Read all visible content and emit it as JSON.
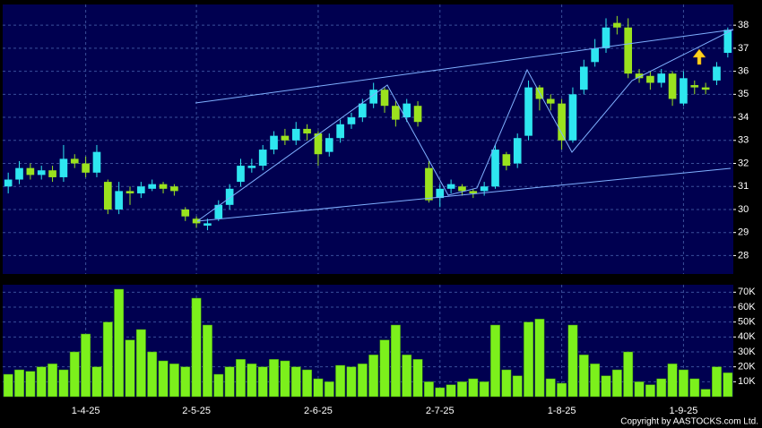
{
  "chart_data": [
    {
      "type": "candlestick",
      "up_color": "#2ee6f0",
      "down_color": "#9be21e",
      "open": [
        31.0,
        31.3,
        31.8,
        31.5,
        31.7,
        31.4,
        32.2,
        32.0,
        31.6,
        31.2,
        30.0,
        30.8,
        30.7,
        30.9,
        31.1,
        31.0,
        30.0,
        29.6,
        29.3,
        29.6,
        30.2,
        31.2,
        31.8,
        31.9,
        32.6,
        33.2,
        33.0,
        33.5,
        33.3,
        32.5,
        33.1,
        33.7,
        34.0,
        34.6,
        35.2,
        34.5,
        34.0,
        34.5,
        31.8,
        30.5,
        30.9,
        31.0,
        30.8,
        30.8,
        31.0,
        32.4,
        32.0,
        33.2,
        35.3,
        34.8,
        34.6,
        33.0,
        35.2,
        36.4,
        37.0,
        38.1,
        37.9,
        35.9,
        35.8,
        35.5,
        35.9,
        34.6,
        35.4,
        35.3,
        35.6,
        36.8
      ],
      "high": [
        31.6,
        32.1,
        32.0,
        31.9,
        31.9,
        32.8,
        32.4,
        32.3,
        32.8,
        31.3,
        31.2,
        31.0,
        31.2,
        31.3,
        31.2,
        31.1,
        30.1,
        29.7,
        29.6,
        30.4,
        31.1,
        32.2,
        32.2,
        32.8,
        33.4,
        33.5,
        33.8,
        33.7,
        33.4,
        33.3,
        33.9,
        34.2,
        34.8,
        35.5,
        35.3,
        34.7,
        34.8,
        34.7,
        32.1,
        31.1,
        31.3,
        31.1,
        30.9,
        31.2,
        32.8,
        32.5,
        33.3,
        35.6,
        35.4,
        35.0,
        34.8,
        35.3,
        36.5,
        37.4,
        38.3,
        38.4,
        38.3,
        36.1,
        36.0,
        36.1,
        36.0,
        36.0,
        35.6,
        35.5,
        36.4,
        37.9
      ],
      "low": [
        30.7,
        31.1,
        31.3,
        31.3,
        31.2,
        31.2,
        31.8,
        31.4,
        31.4,
        29.8,
        29.8,
        30.2,
        30.5,
        30.8,
        30.7,
        30.6,
        29.5,
        29.2,
        29.1,
        29.5,
        30.0,
        31.0,
        31.6,
        31.7,
        32.4,
        32.8,
        32.8,
        33.0,
        31.9,
        32.3,
        32.9,
        33.5,
        33.8,
        34.4,
        34.2,
        33.6,
        33.8,
        33.6,
        30.3,
        30.1,
        30.7,
        30.6,
        30.5,
        30.6,
        30.9,
        31.7,
        31.8,
        33.0,
        34.3,
        34.3,
        32.6,
        32.9,
        35.0,
        36.2,
        36.8,
        37.6,
        35.7,
        35.5,
        35.2,
        35.3,
        34.5,
        34.5,
        35.0,
        35.0,
        35.4,
        36.6
      ],
      "close": [
        31.3,
        31.8,
        31.5,
        31.7,
        31.4,
        32.2,
        32.0,
        31.6,
        32.5,
        30.0,
        30.8,
        30.7,
        31.0,
        31.1,
        30.9,
        30.8,
        29.7,
        29.4,
        29.4,
        30.2,
        30.9,
        31.9,
        31.9,
        32.6,
        33.2,
        33.0,
        33.5,
        33.3,
        32.4,
        33.1,
        33.7,
        34.0,
        34.6,
        35.2,
        34.5,
        33.9,
        34.6,
        33.8,
        30.4,
        30.9,
        31.1,
        30.8,
        30.7,
        31.0,
        32.6,
        31.9,
        33.1,
        35.3,
        34.8,
        34.6,
        33.0,
        35.0,
        36.2,
        37.0,
        37.9,
        37.9,
        35.9,
        35.7,
        35.5,
        35.9,
        34.8,
        35.7,
        35.3,
        35.2,
        36.2,
        37.8
      ],
      "ylim": [
        27.2,
        38.9
      ],
      "yticks": [
        28,
        29,
        30,
        31,
        32,
        33,
        34,
        35,
        36,
        37,
        38
      ],
      "grid": true
    },
    {
      "type": "bar",
      "color": "#7cf01c",
      "categories": [
        null,
        null,
        null,
        null,
        null,
        null,
        null,
        "1-4-25",
        null,
        null,
        null,
        null,
        null,
        null,
        null,
        null,
        null,
        "2-5-25",
        null,
        null,
        null,
        null,
        null,
        null,
        null,
        null,
        null,
        null,
        "2-6-25",
        null,
        null,
        null,
        null,
        null,
        null,
        null,
        null,
        null,
        null,
        "2-7-25",
        null,
        null,
        null,
        null,
        null,
        null,
        null,
        null,
        null,
        null,
        "1-8-25",
        null,
        null,
        null,
        null,
        null,
        null,
        null,
        null,
        null,
        null,
        "1-9-25",
        null,
        null,
        null,
        null
      ],
      "values": [
        15000,
        18000,
        17000,
        20000,
        22000,
        18000,
        30000,
        42000,
        20000,
        50000,
        72000,
        38000,
        45000,
        30000,
        24000,
        22000,
        20000,
        66000,
        48000,
        15000,
        20000,
        25000,
        22000,
        20000,
        25000,
        24000,
        20000,
        18000,
        12000,
        10000,
        21000,
        20000,
        22000,
        28000,
        38000,
        48000,
        28000,
        25000,
        10000,
        6000,
        8000,
        10000,
        12000,
        10000,
        48000,
        18000,
        14000,
        50000,
        52000,
        12000,
        9000,
        48000,
        28000,
        22000,
        14000,
        18000,
        30000,
        10000,
        8000,
        12000,
        22000,
        18000,
        12000,
        5000,
        20000,
        16000
      ],
      "ylim": [
        0,
        75000
      ],
      "yticks": [
        {
          "value": 10000,
          "label": "10K"
        },
        {
          "value": 20000,
          "label": "20K"
        },
        {
          "value": 30000,
          "label": "30K"
        },
        {
          "value": 40000,
          "label": "40K"
        },
        {
          "value": 50000,
          "label": "50K"
        },
        {
          "value": 60000,
          "label": "60K"
        },
        {
          "value": 70000,
          "label": "70K"
        }
      ],
      "grid": true,
      "copyright": "Copyright by AASTOCKS.com Ltd."
    }
  ]
}
